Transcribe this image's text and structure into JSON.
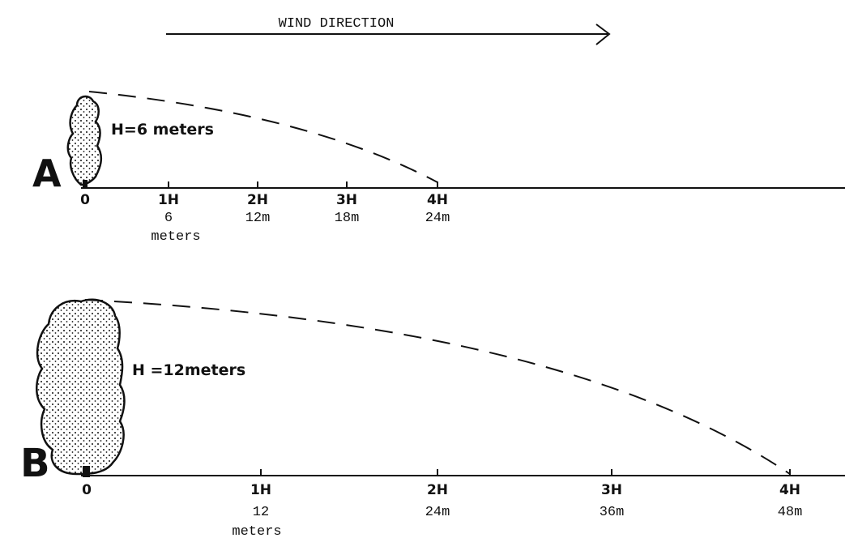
{
  "wind_label": "WIND DIRECTION",
  "panels": [
    {
      "letter": "A",
      "height_label": "H=6 meters",
      "ticks": [
        "0",
        "1H",
        "2H",
        "3H",
        "4H"
      ],
      "distances": [
        "6",
        "12m",
        "18m",
        "24m"
      ],
      "unit": "meters"
    },
    {
      "letter": "B",
      "height_label": "H =12meters",
      "ticks": [
        "0",
        "1H",
        "2H",
        "3H",
        "4H"
      ],
      "distances": [
        "12",
        "24m",
        "36m",
        "48m"
      ],
      "unit": "meters"
    }
  ]
}
